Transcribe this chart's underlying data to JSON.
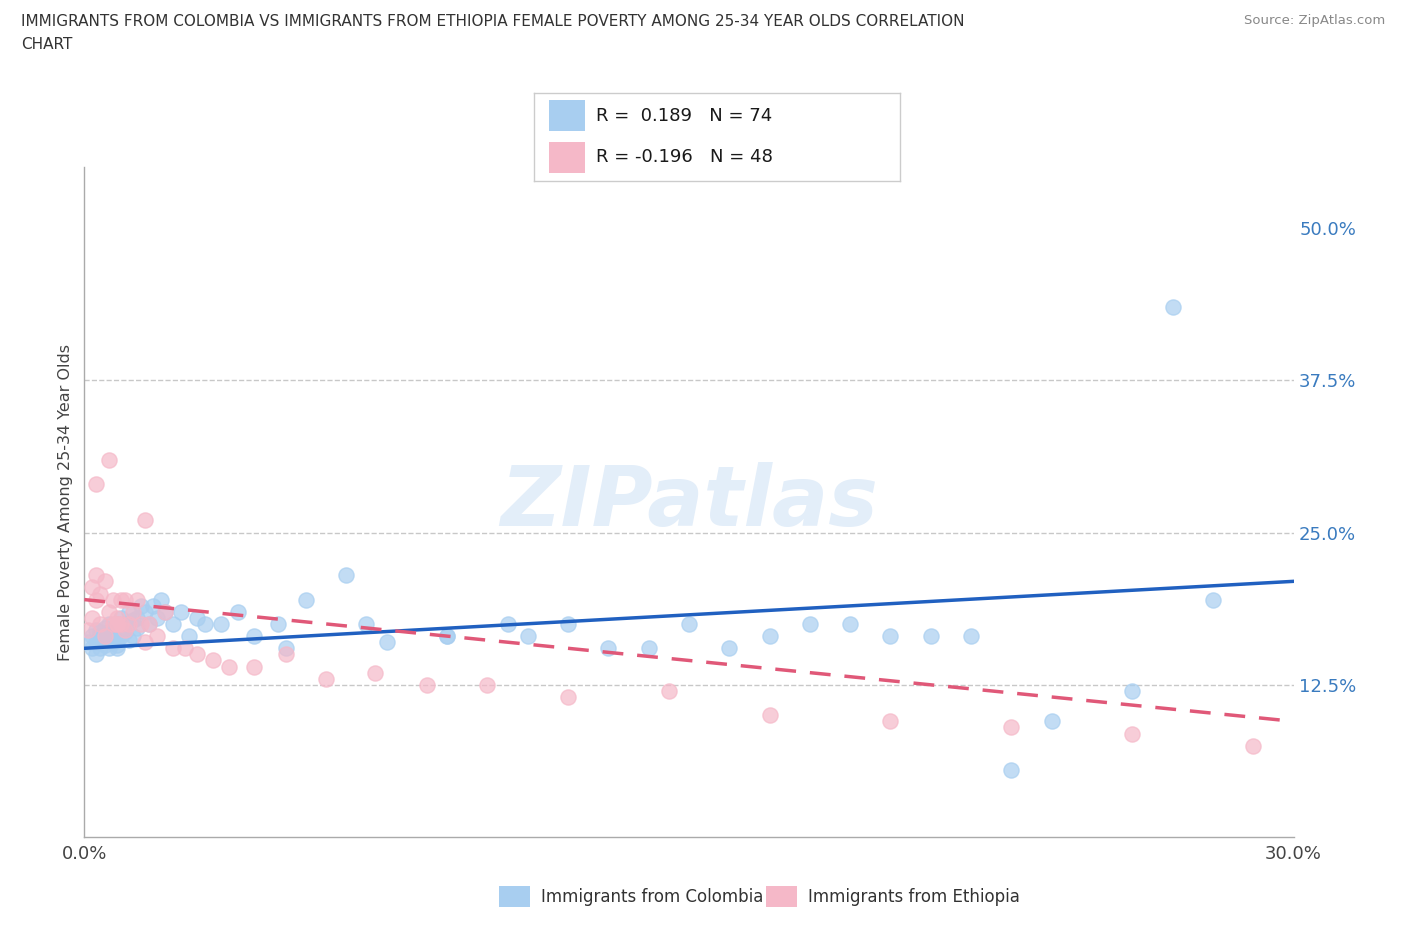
{
  "title_line1": "IMMIGRANTS FROM COLOMBIA VS IMMIGRANTS FROM ETHIOPIA FEMALE POVERTY AMONG 25-34 YEAR OLDS CORRELATION",
  "title_line2": "CHART",
  "source_text": "Source: ZipAtlas.com",
  "ylabel": "Female Poverty Among 25-34 Year Olds",
  "xlim": [
    0.0,
    0.3
  ],
  "ylim": [
    0.0,
    0.55
  ],
  "ytick_vals": [
    0.125,
    0.25,
    0.375,
    0.5
  ],
  "ytick_labels": [
    "12.5%",
    "25.0%",
    "37.5%",
    "50.0%"
  ],
  "xtick_vals": [
    0.0,
    0.3
  ],
  "xtick_labels": [
    "0.0%",
    "30.0%"
  ],
  "grid_color": "#c8c8c8",
  "background_color": "#ffffff",
  "colombia_color": "#a8cef0",
  "ethiopia_color": "#f5b8c8",
  "colombia_line_color": "#2060c0",
  "ethiopia_line_color": "#e05878",
  "legend_text_colombia": "R =  0.189   N = 74",
  "legend_text_ethiopia": "R = -0.196   N = 48",
  "watermark": "ZIPatlas",
  "colombia_seed": 1234,
  "ethiopia_seed": 5678,
  "colombia_x": [
    0.001,
    0.002,
    0.002,
    0.003,
    0.003,
    0.003,
    0.004,
    0.004,
    0.004,
    0.005,
    0.005,
    0.005,
    0.006,
    0.006,
    0.006,
    0.007,
    0.007,
    0.007,
    0.008,
    0.008,
    0.008,
    0.008,
    0.009,
    0.009,
    0.009,
    0.01,
    0.01,
    0.011,
    0.011,
    0.012,
    0.012,
    0.013,
    0.013,
    0.014,
    0.015,
    0.016,
    0.017,
    0.018,
    0.019,
    0.02,
    0.022,
    0.024,
    0.026,
    0.028,
    0.03,
    0.034,
    0.038,
    0.042,
    0.048,
    0.055,
    0.065,
    0.075,
    0.09,
    0.105,
    0.12,
    0.14,
    0.16,
    0.18,
    0.2,
    0.22,
    0.24,
    0.26,
    0.28,
    0.05,
    0.07,
    0.09,
    0.11,
    0.13,
    0.15,
    0.17,
    0.19,
    0.21,
    0.23,
    0.27
  ],
  "colombia_y": [
    0.16,
    0.165,
    0.155,
    0.17,
    0.15,
    0.16,
    0.165,
    0.155,
    0.168,
    0.172,
    0.158,
    0.162,
    0.168,
    0.155,
    0.175,
    0.16,
    0.165,
    0.17,
    0.155,
    0.175,
    0.162,
    0.158,
    0.17,
    0.165,
    0.18,
    0.175,
    0.168,
    0.185,
    0.162,
    0.178,
    0.165,
    0.18,
    0.172,
    0.19,
    0.185,
    0.175,
    0.19,
    0.18,
    0.195,
    0.185,
    0.175,
    0.185,
    0.165,
    0.18,
    0.175,
    0.175,
    0.185,
    0.165,
    0.175,
    0.195,
    0.215,
    0.16,
    0.165,
    0.175,
    0.175,
    0.155,
    0.155,
    0.175,
    0.165,
    0.165,
    0.095,
    0.12,
    0.195,
    0.155,
    0.175,
    0.165,
    0.165,
    0.155,
    0.175,
    0.165,
    0.175,
    0.165,
    0.055,
    0.435
  ],
  "ethiopia_x": [
    0.001,
    0.002,
    0.002,
    0.003,
    0.003,
    0.004,
    0.004,
    0.005,
    0.005,
    0.006,
    0.006,
    0.007,
    0.007,
    0.008,
    0.008,
    0.009,
    0.009,
    0.01,
    0.01,
    0.011,
    0.012,
    0.013,
    0.014,
    0.015,
    0.016,
    0.018,
    0.02,
    0.022,
    0.025,
    0.028,
    0.032,
    0.036,
    0.042,
    0.05,
    0.06,
    0.072,
    0.085,
    0.1,
    0.12,
    0.145,
    0.17,
    0.2,
    0.23,
    0.26,
    0.29,
    0.003,
    0.008,
    0.015
  ],
  "ethiopia_y": [
    0.17,
    0.18,
    0.205,
    0.195,
    0.29,
    0.2,
    0.175,
    0.21,
    0.165,
    0.185,
    0.31,
    0.195,
    0.175,
    0.18,
    0.175,
    0.195,
    0.175,
    0.195,
    0.17,
    0.175,
    0.185,
    0.195,
    0.175,
    0.16,
    0.175,
    0.165,
    0.185,
    0.155,
    0.155,
    0.15,
    0.145,
    0.14,
    0.14,
    0.15,
    0.13,
    0.135,
    0.125,
    0.125,
    0.115,
    0.12,
    0.1,
    0.095,
    0.09,
    0.085,
    0.075,
    0.215,
    0.175,
    0.26
  ]
}
